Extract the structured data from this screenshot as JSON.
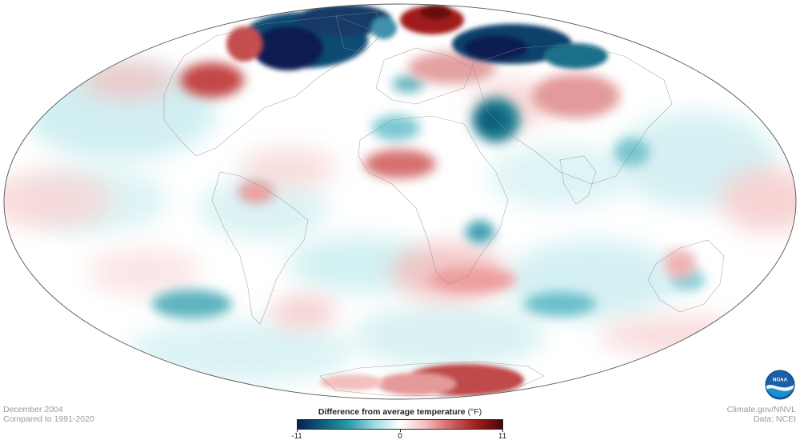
{
  "map": {
    "projection": "world-ellipse",
    "colors": {
      "ocean_neutral": "#ffffff",
      "border_lines": "#8a8a8a",
      "outline": "#555555"
    }
  },
  "footer": {
    "date": "December 2004",
    "baseline": "Compared to 1991-2020",
    "source_site": "Climate.gov/NNVL",
    "data_source": "Data: NCEI"
  },
  "legend": {
    "title": "Difference from average temperature",
    "unit": "(°F)",
    "min_label": "-11",
    "mid_label": "0",
    "max_label": "11",
    "min": -11,
    "max": 11,
    "gradient": [
      "#0b1f52",
      "#0d5f7a",
      "#2a9bab",
      "#9ed8de",
      "#ffffff",
      "#f5bcbc",
      "#d06060",
      "#a01d1d",
      "#4a0707"
    ]
  },
  "logo": {
    "label": "NOAA"
  }
}
